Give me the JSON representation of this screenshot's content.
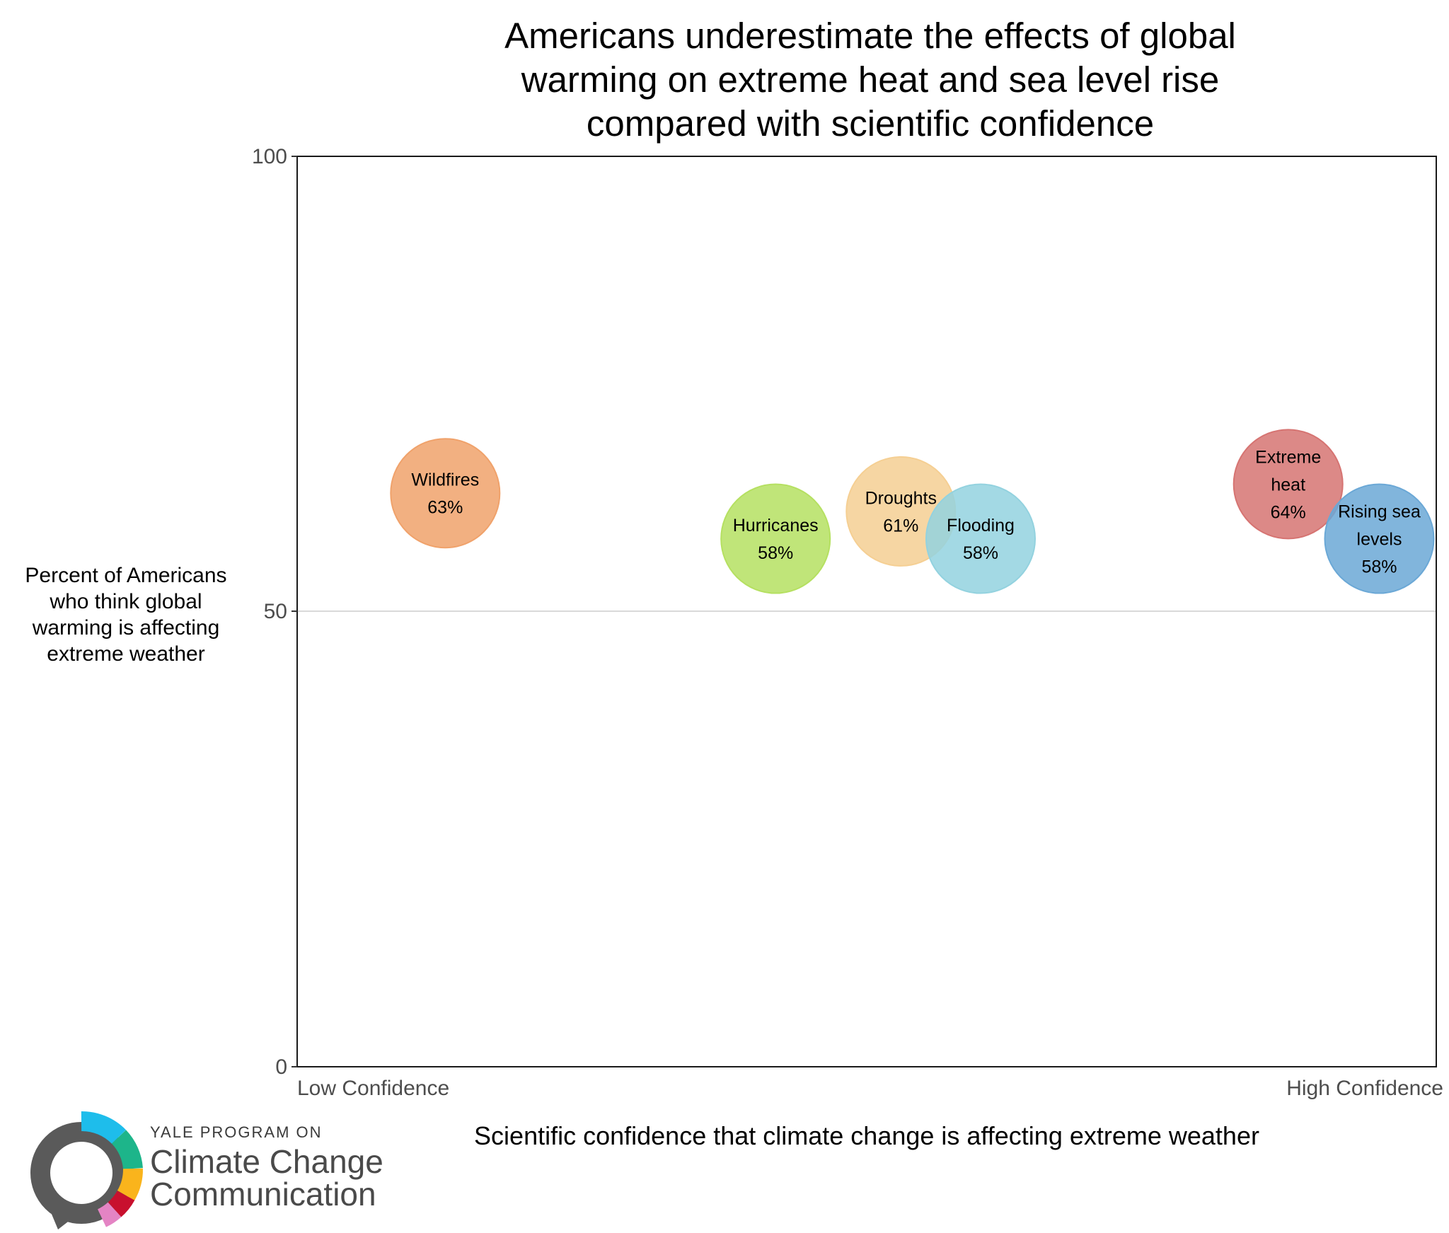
{
  "chart_data": {
    "type": "scatter",
    "title": "Americans underestimate the effects of global warming on extreme heat and sea level rise compared with scientific confidence",
    "title_lines": [
      "Americans underestimate the effects of global",
      "warming on extreme heat and sea level rise",
      "compared with scientific confidence"
    ],
    "xlabel": "Scientific confidence that climate change is affecting extreme weather",
    "ylabel": "Percent of Americans who think global warming is affecting extreme weather",
    "ylabel_lines": [
      "Percent of Americans",
      "who think global",
      "warming is affecting",
      "extreme weather"
    ],
    "x_tick_labels": [
      "Low Confidence",
      "High Confidence"
    ],
    "y_ticks": [
      0,
      50,
      100
    ],
    "ylim": [
      0,
      100
    ],
    "xlim": [
      0,
      1
    ],
    "grid": "horizontal line at 50",
    "points": [
      {
        "label_lines": [
          "Wildfires"
        ],
        "value_label": "63%",
        "x": 0.13,
        "y": 63,
        "color": "#F0A26B"
      },
      {
        "label_lines": [
          "Hurricanes"
        ],
        "value_label": "58%",
        "x": 0.42,
        "y": 58,
        "color": "#B5E061"
      },
      {
        "label_lines": [
          "Droughts"
        ],
        "value_label": "61%",
        "x": 0.53,
        "y": 61,
        "color": "#F5CF93"
      },
      {
        "label_lines": [
          "Flooding"
        ],
        "value_label": "58%",
        "x": 0.6,
        "y": 58,
        "color": "#93D2DF"
      },
      {
        "label_lines": [
          "Extreme",
          "heat"
        ],
        "value_label": "64%",
        "x": 0.87,
        "y": 64,
        "color": "#D67472"
      },
      {
        "label_lines": [
          "Rising sea",
          "levels"
        ],
        "value_label": "58%",
        "x": 0.95,
        "y": 58,
        "color": "#6BA8D6"
      }
    ]
  },
  "logo": {
    "line1": "YALE PROGRAM ON",
    "line2": "Climate Change",
    "line3": "Communication",
    "ring_colors": [
      "#1EBDEB",
      "#1DB58A",
      "#FAB41C",
      "#C8102E",
      "#E484C4"
    ]
  }
}
